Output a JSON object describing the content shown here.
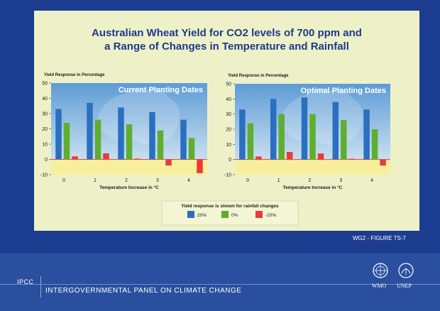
{
  "title": {
    "line1": "Australian Wheat Yield for CO2 levels of 700 ppm and",
    "line2": "a Range of Changes in Temperature and Rainfall"
  },
  "colors": {
    "s20": "#2b6fc0",
    "s0": "#5fae2e",
    "sminus20": "#ea3b3b",
    "plot_bg_top": "#5d9cd6",
    "plot_bg_bottom": "#c9dff0",
    "neg_band": "#f7ef9b"
  },
  "legend": {
    "title": "Yield response is shown for rainfall changes",
    "items": [
      "20%",
      "0%",
      "-20%"
    ]
  },
  "chart_data": [
    {
      "type": "bar",
      "panel_title": "Current Planting Dates",
      "ylabel": "Yield Response in Percentage",
      "xlabel": "Temperature Increase in °C",
      "categories": [
        "0",
        "1",
        "2",
        "3",
        "4"
      ],
      "yticks": [
        "50",
        "40",
        "30",
        "20",
        "10",
        "0",
        "-10"
      ],
      "ylim": [
        -10,
        50
      ],
      "series": [
        {
          "name": "20%",
          "values": [
            33,
            37,
            34,
            31,
            26
          ]
        },
        {
          "name": "0%",
          "values": [
            24,
            26,
            23,
            19,
            14
          ]
        },
        {
          "name": "-20%",
          "values": [
            2,
            4,
            0.5,
            -4,
            -9
          ]
        }
      ]
    },
    {
      "type": "bar",
      "panel_title": "Optimal Planting Dates",
      "ylabel": "Yield Response in Percentage",
      "xlabel": "Temperature Increase in °C",
      "categories": [
        "0",
        "1",
        "2",
        "3",
        "4"
      ],
      "yticks": [
        "50",
        "40",
        "30",
        "20",
        "10",
        "0",
        "-10"
      ],
      "ylim": [
        -10,
        50
      ],
      "series": [
        {
          "name": "20%",
          "values": [
            33,
            40,
            41,
            38,
            33
          ]
        },
        {
          "name": "0%",
          "values": [
            24,
            30,
            30,
            26,
            20
          ]
        },
        {
          "name": "-20%",
          "values": [
            2,
            5,
            4,
            0.5,
            -4
          ]
        }
      ]
    }
  ],
  "caption": "WG2 - FIGURE TS-7",
  "footer": {
    "org_short": "IPCC",
    "org_long": "INTERGOVERNMENTAL PANEL ON CLIMATE CHANGE",
    "logo_wmo": "WMO",
    "logo_unep": "UNEP"
  }
}
